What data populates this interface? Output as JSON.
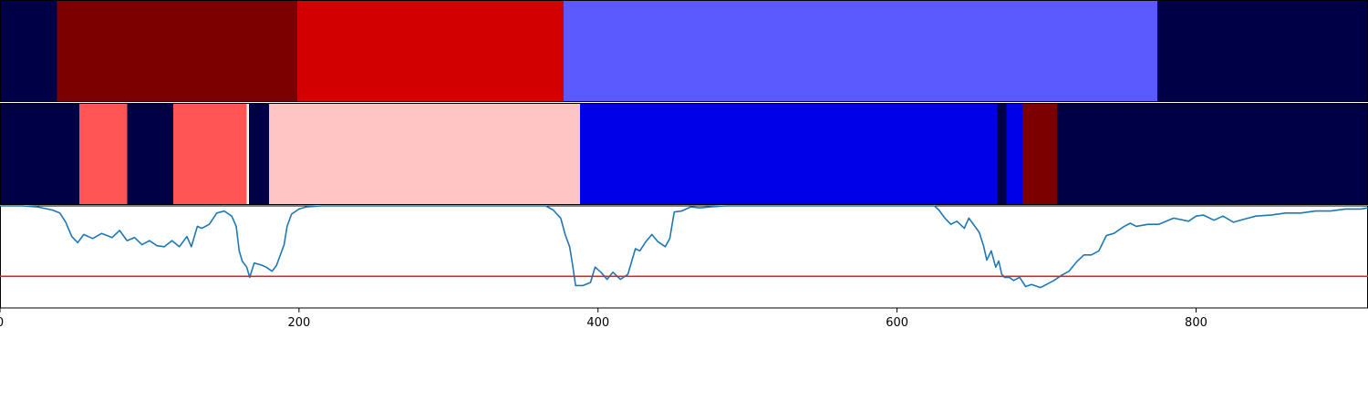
{
  "chart_data": [
    {
      "type": "bar",
      "orientation": "horizontal-segments",
      "xlim": [
        0,
        915
      ],
      "segments": [
        {
          "start": 0,
          "end": 38,
          "color": "#000046"
        },
        {
          "start": 38,
          "end": 199,
          "color": "#7c0000"
        },
        {
          "start": 199,
          "end": 377,
          "color": "#d20000"
        },
        {
          "start": 377,
          "end": 774,
          "color": "#5a5aff"
        },
        {
          "start": 774,
          "end": 915,
          "color": "#000046"
        }
      ]
    },
    {
      "type": "bar",
      "orientation": "horizontal-segments",
      "xlim": [
        0,
        915
      ],
      "segments": [
        {
          "start": 0,
          "end": 53,
          "color": "#000046"
        },
        {
          "start": 53,
          "end": 85,
          "color": "#ff5555"
        },
        {
          "start": 85,
          "end": 116,
          "color": "#000046"
        },
        {
          "start": 116,
          "end": 165,
          "color": "#ff5555"
        },
        {
          "start": 165,
          "end": 166.5,
          "color": "#ffffff"
        },
        {
          "start": 166.5,
          "end": 180,
          "color": "#000046"
        },
        {
          "start": 180,
          "end": 388,
          "color": "#ffc5c5"
        },
        {
          "start": 388,
          "end": 667,
          "color": "#0000e8"
        },
        {
          "start": 667,
          "end": 673,
          "color": "#000046"
        },
        {
          "start": 673,
          "end": 684,
          "color": "#0000e8"
        },
        {
          "start": 684,
          "end": 707,
          "color": "#7c0000"
        },
        {
          "start": 707,
          "end": 915,
          "color": "#000046"
        }
      ]
    },
    {
      "type": "line",
      "xlim": [
        0,
        915
      ],
      "ylim": [
        0,
        1
      ],
      "x_ticks": [
        "0",
        "200",
        "400",
        "600",
        "800"
      ],
      "x_tick_values": [
        0,
        200,
        400,
        600,
        800
      ],
      "threshold": {
        "y": 0.31,
        "color": "#d62728"
      },
      "series": [
        {
          "color": "#1f77b4",
          "points": [
            [
              0,
              1.0
            ],
            [
              15,
              1.0
            ],
            [
              25,
              0.99
            ],
            [
              35,
              0.96
            ],
            [
              40,
              0.93
            ],
            [
              44,
              0.84
            ],
            [
              48,
              0.7
            ],
            [
              52,
              0.64
            ],
            [
              56,
              0.72
            ],
            [
              62,
              0.68
            ],
            [
              68,
              0.73
            ],
            [
              75,
              0.69
            ],
            [
              80,
              0.76
            ],
            [
              85,
              0.66
            ],
            [
              90,
              0.69
            ],
            [
              95,
              0.62
            ],
            [
              100,
              0.66
            ],
            [
              105,
              0.61
            ],
            [
              110,
              0.6
            ],
            [
              115,
              0.66
            ],
            [
              120,
              0.6
            ],
            [
              125,
              0.7
            ],
            [
              128,
              0.6
            ],
            [
              132,
              0.8
            ],
            [
              135,
              0.78
            ],
            [
              140,
              0.82
            ],
            [
              145,
              0.93
            ],
            [
              150,
              0.95
            ],
            [
              155,
              0.9
            ],
            [
              158,
              0.8
            ],
            [
              160,
              0.56
            ],
            [
              162,
              0.46
            ],
            [
              165,
              0.4
            ],
            [
              167,
              0.3
            ],
            [
              170,
              0.44
            ],
            [
              175,
              0.42
            ],
            [
              178,
              0.4
            ],
            [
              182,
              0.36
            ],
            [
              185,
              0.42
            ],
            [
              190,
              0.62
            ],
            [
              192,
              0.8
            ],
            [
              195,
              0.92
            ],
            [
              200,
              0.97
            ],
            [
              205,
              0.99
            ],
            [
              215,
              1.0
            ],
            [
              365,
              1.0
            ],
            [
              370,
              0.96
            ],
            [
              375,
              0.88
            ],
            [
              378,
              0.72
            ],
            [
              381,
              0.6
            ],
            [
              383,
              0.42
            ],
            [
              385,
              0.22
            ],
            [
              390,
              0.22
            ],
            [
              395,
              0.25
            ],
            [
              398,
              0.4
            ],
            [
              402,
              0.35
            ],
            [
              406,
              0.28
            ],
            [
              410,
              0.35
            ],
            [
              415,
              0.28
            ],
            [
              420,
              0.33
            ],
            [
              425,
              0.58
            ],
            [
              428,
              0.56
            ],
            [
              432,
              0.65
            ],
            [
              436,
              0.72
            ],
            [
              440,
              0.65
            ],
            [
              445,
              0.6
            ],
            [
              448,
              0.68
            ],
            [
              451,
              0.94
            ],
            [
              456,
              0.95
            ],
            [
              462,
              0.99
            ],
            [
              468,
              0.98
            ],
            [
              475,
              0.99
            ],
            [
              485,
              1.0
            ],
            [
              625,
              1.0
            ],
            [
              628,
              0.96
            ],
            [
              632,
              0.88
            ],
            [
              636,
              0.82
            ],
            [
              640,
              0.85
            ],
            [
              645,
              0.78
            ],
            [
              648,
              0.88
            ],
            [
              652,
              0.8
            ],
            [
              655,
              0.74
            ],
            [
              658,
              0.6
            ],
            [
              660,
              0.47
            ],
            [
              663,
              0.56
            ],
            [
              666,
              0.4
            ],
            [
              668,
              0.46
            ],
            [
              670,
              0.33
            ],
            [
              672,
              0.3
            ],
            [
              675,
              0.3
            ],
            [
              678,
              0.27
            ],
            [
              682,
              0.3
            ],
            [
              686,
              0.21
            ],
            [
              690,
              0.23
            ],
            [
              696,
              0.2
            ],
            [
              700,
              0.23
            ],
            [
              705,
              0.27
            ],
            [
              710,
              0.32
            ],
            [
              715,
              0.36
            ],
            [
              720,
              0.45
            ],
            [
              725,
              0.52
            ],
            [
              730,
              0.52
            ],
            [
              735,
              0.56
            ],
            [
              740,
              0.71
            ],
            [
              745,
              0.73
            ],
            [
              752,
              0.8
            ],
            [
              756,
              0.83
            ],
            [
              760,
              0.8
            ],
            [
              768,
              0.82
            ],
            [
              775,
              0.82
            ],
            [
              785,
              0.88
            ],
            [
              795,
              0.85
            ],
            [
              800,
              0.9
            ],
            [
              805,
              0.91
            ],
            [
              812,
              0.86
            ],
            [
              818,
              0.9
            ],
            [
              825,
              0.84
            ],
            [
              832,
              0.87
            ],
            [
              840,
              0.9
            ],
            [
              850,
              0.91
            ],
            [
              860,
              0.93
            ],
            [
              870,
              0.93
            ],
            [
              880,
              0.95
            ],
            [
              890,
              0.95
            ],
            [
              900,
              0.97
            ],
            [
              910,
              0.97
            ],
            [
              915,
              0.98
            ]
          ]
        }
      ]
    }
  ]
}
